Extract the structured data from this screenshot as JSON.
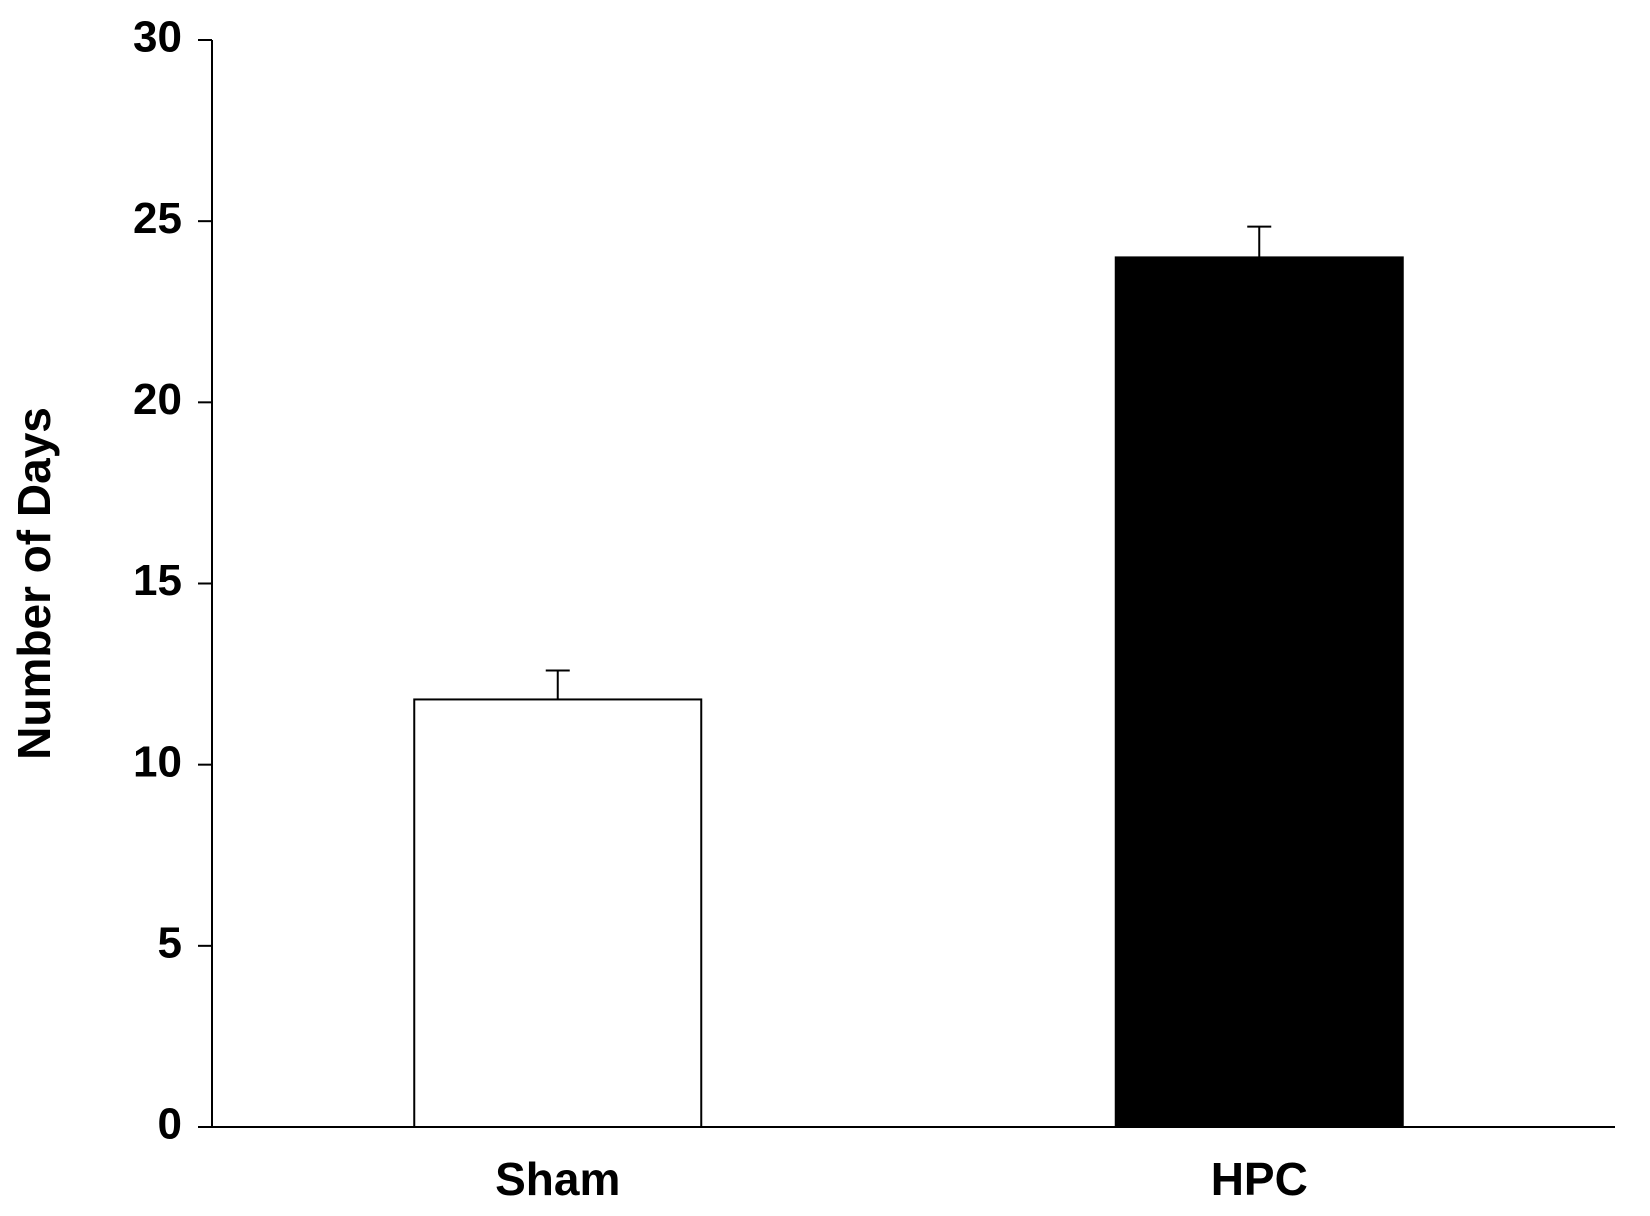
{
  "chart_data": {
    "type": "bar",
    "title": "",
    "xlabel": "",
    "ylabel": "Number of Days",
    "ylim": [
      0,
      30
    ],
    "yticks": [
      "0",
      "5",
      "10",
      "15",
      "20",
      "25",
      "30"
    ],
    "categories": [
      "Sham",
      "HPC"
    ],
    "series": [
      {
        "values": [
          11.8,
          24.0
        ],
        "errors": [
          0.8,
          0.85
        ],
        "colors": [
          "#ffffff",
          "#000000"
        ]
      }
    ],
    "grid": false,
    "legend": "none"
  },
  "colors": {
    "axis": "#000000",
    "bar_outline": "#000000"
  }
}
